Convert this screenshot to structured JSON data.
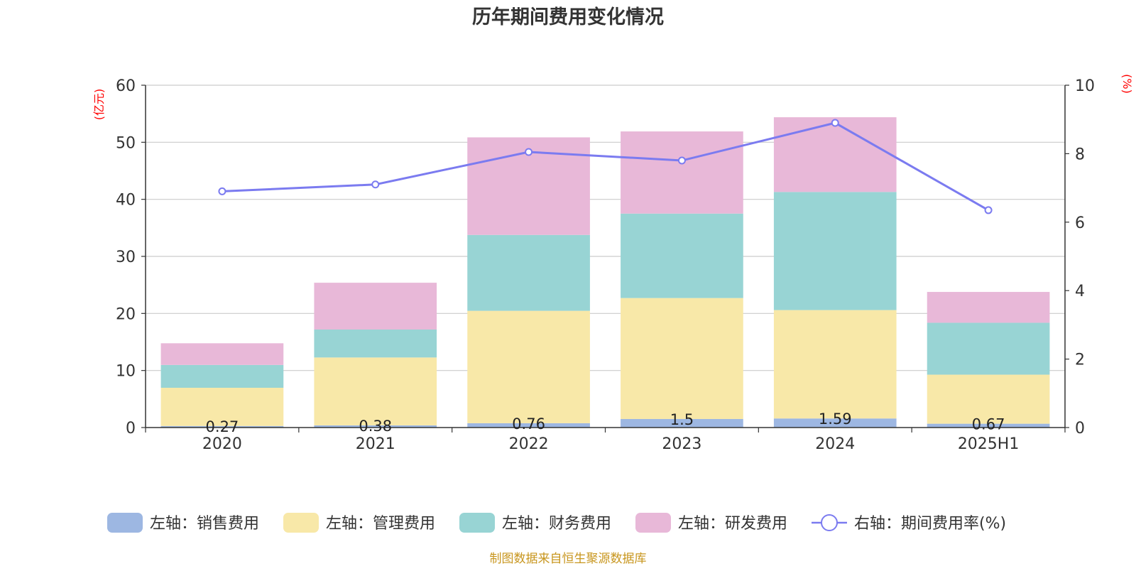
{
  "chart_data": {
    "type": "bar",
    "stacked": true,
    "title": "历年期间费用变化情况",
    "categories": [
      "2020",
      "2021",
      "2022",
      "2023",
      "2024",
      "2025H1"
    ],
    "y_left": {
      "label": "(亿元)",
      "ylim": [
        0,
        60
      ],
      "ticks": [
        0,
        10,
        20,
        30,
        40,
        50,
        60
      ]
    },
    "y_right": {
      "label": "(%)",
      "ylim": [
        0,
        10
      ],
      "ticks": [
        0,
        2,
        4,
        6,
        8,
        10
      ]
    },
    "grid": true,
    "legend_position": "bottom",
    "series": [
      {
        "name": "左轴：销售费用",
        "type": "bar",
        "axis": "left",
        "color": "#9db7e2",
        "values": [
          0.27,
          0.38,
          0.76,
          1.5,
          1.59,
          0.67
        ],
        "labels": [
          "0.27",
          "0.38",
          "0.76",
          "1.5",
          "1.59",
          "0.67"
        ]
      },
      {
        "name": "左轴：管理费用",
        "type": "bar",
        "axis": "left",
        "color": "#f8e8a8",
        "values": [
          6.7,
          11.9,
          19.7,
          21.2,
          19.0,
          8.6
        ]
      },
      {
        "name": "左轴：财务费用",
        "type": "bar",
        "axis": "left",
        "color": "#98d4d4",
        "values": [
          4.0,
          4.9,
          13.3,
          14.8,
          20.7,
          9.1
        ]
      },
      {
        "name": "左轴：研发费用",
        "type": "bar",
        "axis": "left",
        "color": "#e8b8d8",
        "values": [
          3.8,
          8.2,
          17.1,
          14.4,
          13.1,
          5.4
        ]
      },
      {
        "name": "右轴：期间费用率(%)",
        "type": "line",
        "axis": "right",
        "color": "#7b7bf0",
        "values": [
          6.9,
          7.1,
          8.05,
          7.8,
          8.9,
          6.35
        ]
      }
    ],
    "source_note": "制图数据来自恒生聚源数据库"
  }
}
